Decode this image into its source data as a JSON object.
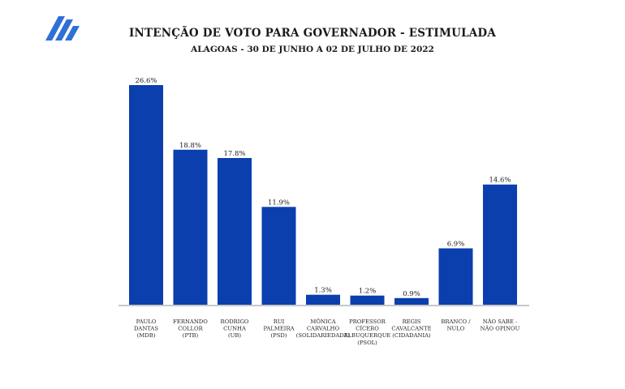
{
  "header": {
    "title": "INTENÇÃO DE VOTO PARA GOVERNADOR - ESTIMULADA",
    "subtitle": "ALAGOAS - 30 DE JUNHO A 02 DE JULHO DE 2022",
    "logo_icon": "stacked-chevron-logo-icon"
  },
  "chart_data": {
    "type": "bar",
    "title": "INTENÇÃO DE VOTO PARA GOVERNADOR - ESTIMULADA",
    "subtitle": "ALAGOAS - 30 DE JUNHO A 02 DE JULHO DE 2022",
    "xlabel": "",
    "ylabel": "",
    "ylim": [
      0,
      28
    ],
    "grid": false,
    "legend": "none",
    "bar_color": "#0b3fae",
    "categories": [
      [
        "PAULO",
        "DANTAS",
        "(MDB)"
      ],
      [
        "FERNANDO",
        "COLLOR",
        "(PTB)"
      ],
      [
        "RODRIGO",
        "CUNHA",
        "(UB)"
      ],
      [
        "RUI",
        "PALMEIRA",
        "(PSD)"
      ],
      [
        "MÔNICA",
        "CARVALHO",
        "(SOLIDARIEDADE)"
      ],
      [
        "PROFESSOR",
        "CÍCERO",
        "ALBUQUERQUE",
        "(PSOL)"
      ],
      [
        "REGIS",
        "CAVALCANTE",
        "(CIDADANIA)"
      ],
      [
        "BRANCO /",
        "NULO"
      ],
      [
        "NÃO SABE  -",
        "NÃO OPINOU"
      ]
    ],
    "values": [
      26.6,
      18.8,
      17.8,
      11.9,
      1.3,
      1.2,
      0.9,
      6.9,
      14.6
    ],
    "value_labels": [
      "26.6%",
      "18.8%",
      "17.8%",
      "11.9%",
      "1.3%",
      "1.2%",
      "0.9%",
      "6.9%",
      "14.6%"
    ]
  }
}
